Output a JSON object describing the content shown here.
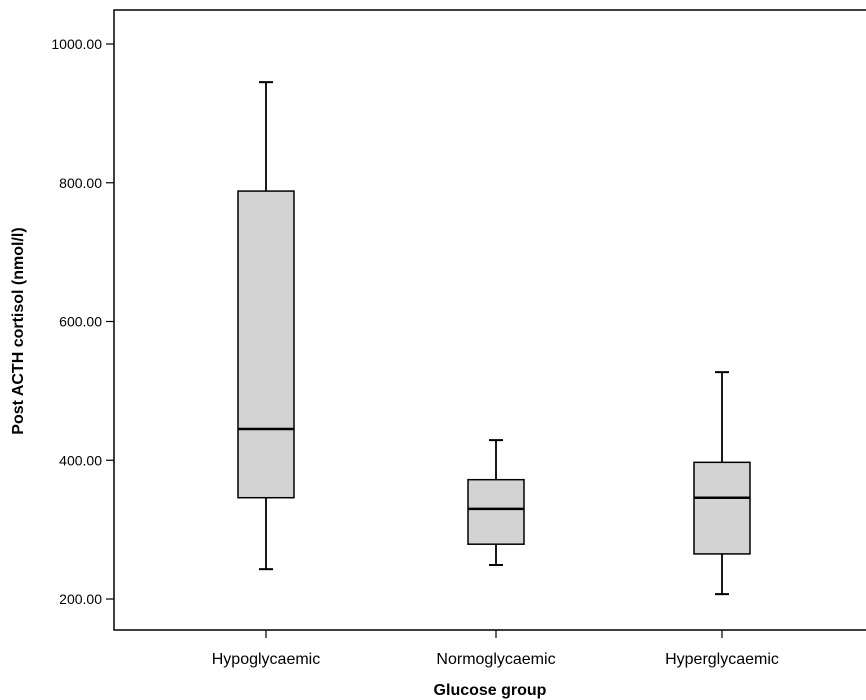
{
  "chart_data": {
    "type": "boxplot",
    "title": "",
    "xlabel": "Glucose group",
    "ylabel": "Post ACTH cortisol (nmol/l)",
    "ylim": [
      170,
      1045
    ],
    "yticks": [
      200,
      400,
      600,
      800,
      1000
    ],
    "ytick_labels": [
      "200.00",
      "400.00",
      "600.00",
      "800.00",
      "1000.00"
    ],
    "grid": false,
    "categories": [
      "Hypoglycaemic",
      "Normoglycaemic",
      "Hyperglycaemic"
    ],
    "boxes": [
      {
        "min": 243,
        "q1": 346,
        "median": 445,
        "q3": 788,
        "max": 945
      },
      {
        "min": 249,
        "q1": 279,
        "median": 330,
        "q3": 372,
        "max": 429
      },
      {
        "min": 207,
        "q1": 265,
        "median": 346,
        "q3": 397,
        "max": 527
      }
    ],
    "colors": {
      "box_fill": "#d3d3d3",
      "stroke": "#000000"
    }
  }
}
